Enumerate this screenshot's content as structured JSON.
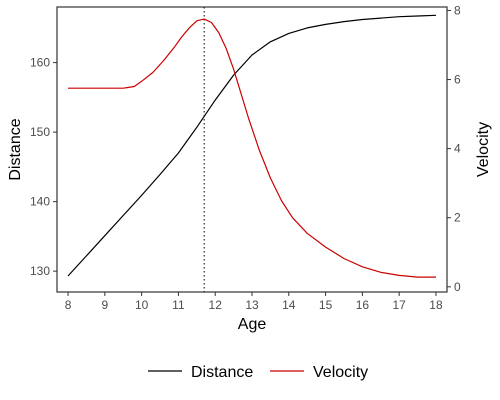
{
  "chart_data": {
    "type": "line",
    "title": "",
    "xlabel": "Age",
    "ylabel_left": "Distance",
    "ylabel_right": "Velocity",
    "xlim": [
      7.7,
      18.3
    ],
    "ylim_left": [
      127,
      168
    ],
    "ylim_right": [
      -0.15,
      8.1
    ],
    "x_ticks": [
      8,
      9,
      10,
      11,
      12,
      13,
      14,
      15,
      16,
      17,
      18
    ],
    "y_left_ticks": [
      130,
      140,
      150,
      160
    ],
    "y_right_ticks": [
      0,
      2,
      4,
      6,
      8
    ],
    "vline_x": 11.7,
    "grid": false,
    "legend_position": "bottom",
    "series": [
      {
        "name": "Distance",
        "axis": "left",
        "color": "#000000",
        "x": [
          8,
          8.5,
          9,
          9.5,
          10,
          10.5,
          11,
          11.5,
          12,
          12.5,
          13,
          13.5,
          14,
          14.5,
          15,
          15.5,
          16,
          16.5,
          17,
          17.5,
          18
        ],
        "y": [
          129.3,
          132.2,
          135.1,
          138.0,
          140.9,
          143.9,
          147.0,
          150.7,
          154.6,
          158.2,
          161.1,
          163.0,
          164.2,
          165.0,
          165.5,
          165.9,
          166.2,
          166.4,
          166.6,
          166.7,
          166.8
        ]
      },
      {
        "name": "Velocity",
        "axis": "right",
        "color": "#cc0000",
        "x": [
          8,
          8.5,
          9,
          9.5,
          9.8,
          10,
          10.3,
          10.6,
          10.9,
          11.1,
          11.3,
          11.5,
          11.7,
          11.9,
          12.1,
          12.3,
          12.5,
          12.7,
          12.9,
          13.2,
          13.5,
          13.8,
          14.1,
          14.5,
          15,
          15.5,
          16,
          16.5,
          17,
          17.5,
          18
        ],
        "y": [
          5.75,
          5.75,
          5.75,
          5.75,
          5.8,
          5.95,
          6.2,
          6.55,
          6.95,
          7.25,
          7.5,
          7.7,
          7.75,
          7.65,
          7.35,
          6.9,
          6.3,
          5.6,
          4.9,
          3.95,
          3.15,
          2.5,
          2.0,
          1.55,
          1.15,
          0.82,
          0.58,
          0.42,
          0.33,
          0.28,
          0.28
        ]
      }
    ]
  }
}
